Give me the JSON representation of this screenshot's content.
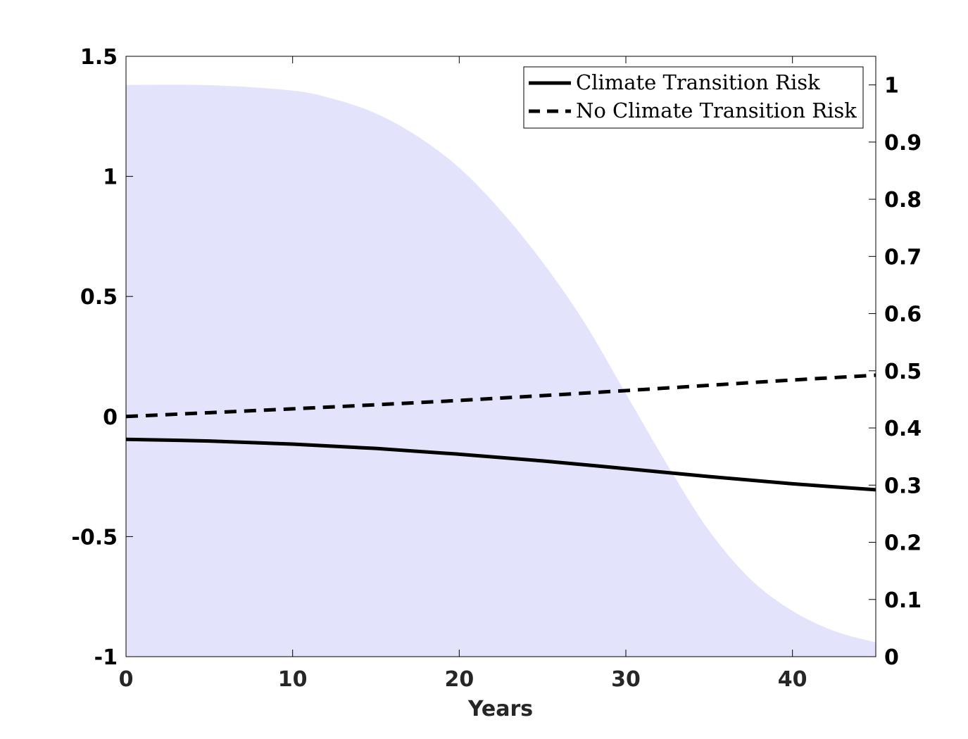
{
  "chart_data": {
    "type": "line",
    "title": "",
    "xlabel": "Years",
    "ylabel": "",
    "y2label": "",
    "xlim": [
      0,
      45
    ],
    "ylim": [
      -1,
      1.5
    ],
    "y2lim": [
      0,
      1.05
    ],
    "xticks": [
      0,
      10,
      20,
      30,
      40
    ],
    "yticks": [
      -1,
      -0.5,
      0,
      0.5,
      1,
      1.5
    ],
    "y2ticks": [
      0,
      0.1,
      0.2,
      0.3,
      0.4,
      0.5,
      0.6,
      0.7,
      0.8,
      0.9,
      1
    ],
    "grid": false,
    "legend_position": "top-right",
    "series": [
      {
        "name": "Climate Transition Risk",
        "axis": "left",
        "style": "solid",
        "color": "#000000",
        "x": [
          0,
          5,
          10,
          15,
          20,
          25,
          30,
          35,
          40,
          45
        ],
        "y": [
          -0.095,
          -0.102,
          -0.115,
          -0.133,
          -0.157,
          -0.185,
          -0.217,
          -0.25,
          -0.28,
          -0.305
        ]
      },
      {
        "name": "No Climate Transition Risk",
        "axis": "left",
        "style": "dashed",
        "color": "#000000",
        "x": [
          0,
          5,
          10,
          15,
          20,
          25,
          30,
          35,
          40,
          45
        ],
        "y": [
          0.0,
          0.016,
          0.032,
          0.049,
          0.067,
          0.087,
          0.108,
          0.13,
          0.152,
          0.172
        ]
      },
      {
        "axis": "right",
        "style": "area",
        "color": "#e3e3fc",
        "x": [
          0,
          5,
          10,
          12.5,
          15,
          17.5,
          20,
          22.5,
          25,
          27.5,
          30,
          32.5,
          35,
          37.5,
          40,
          42.5,
          45
        ],
        "y": [
          1.0,
          0.9995,
          0.99,
          0.975,
          0.95,
          0.91,
          0.855,
          0.78,
          0.69,
          0.585,
          0.46,
          0.335,
          0.22,
          0.135,
          0.08,
          0.045,
          0.025
        ]
      }
    ]
  }
}
